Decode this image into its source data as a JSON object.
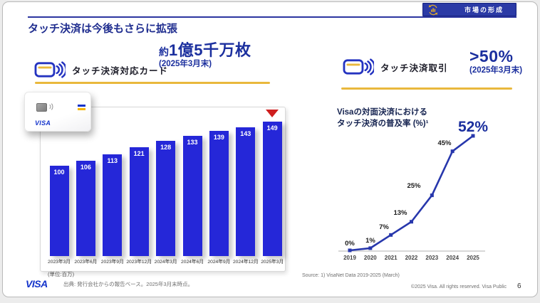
{
  "header": {
    "badge_label": "市場の形成",
    "title": "タッチ決済は今後もさらに拡張"
  },
  "left_section": {
    "label": "タッチ決済対応カード",
    "headline_prefix": "約",
    "headline_value": "1億5千万枚",
    "headline_note": "(2025年3月末)",
    "unit_note": "(単位:百万)",
    "card_brand": "VISA"
  },
  "right_section": {
    "label": "タッチ決済取引",
    "headline_value": ">50%",
    "headline_note": "(2025年3月末)",
    "chart_title_line1": "Visaの対面決済における",
    "chart_title_line2": "タッチ決済の普及率 (%)¹"
  },
  "footer": {
    "visa_logo": "VISA",
    "source_left": "出典: 発行会社からの報告ベース。2025年3月末時点。",
    "source_right": "Source: 1) VisaNet Data 2019-2025 (March)",
    "copyright": "©2025 Visa. All rights reserved. Visa Public",
    "page_number": "6"
  },
  "colors": {
    "navy": "#1b2f9e",
    "bar_blue": "#2527d8",
    "line_blue": "#2737ac",
    "gold": "#e9b83c",
    "badge_blue": "#2b3aa6",
    "marker_red": "#cf1f1f"
  },
  "chart_data": [
    {
      "type": "bar",
      "title": "タッチ決済対応カード",
      "unit": "百万",
      "categories": [
        "2023年3月",
        "2023年6月",
        "2023年9月",
        "2023年12月",
        "2024年3月",
        "2024年6月",
        "2024年9月",
        "2024年12月",
        "2025年3月"
      ],
      "values": [
        100,
        106,
        113,
        121,
        128,
        133,
        139,
        143,
        149
      ],
      "highlight_index": 8,
      "bar_color": "#2527d8",
      "ylim": [
        0,
        160
      ],
      "grid": false
    },
    {
      "type": "line",
      "title": "Visaの対面決済における タッチ決済の普及率 (%)¹",
      "x": [
        "2019",
        "2020",
        "2021",
        "2022",
        "2023",
        "2024",
        "2025"
      ],
      "values": [
        0,
        1,
        7,
        13,
        25,
        45,
        52
      ],
      "point_labels": [
        "0%",
        "1%",
        "7%",
        "13%",
        "25%",
        "45%",
        "52%"
      ],
      "highlight_label": "52%",
      "line_color": "#2737ac",
      "ylim": [
        0,
        60
      ],
      "grid": false
    }
  ]
}
